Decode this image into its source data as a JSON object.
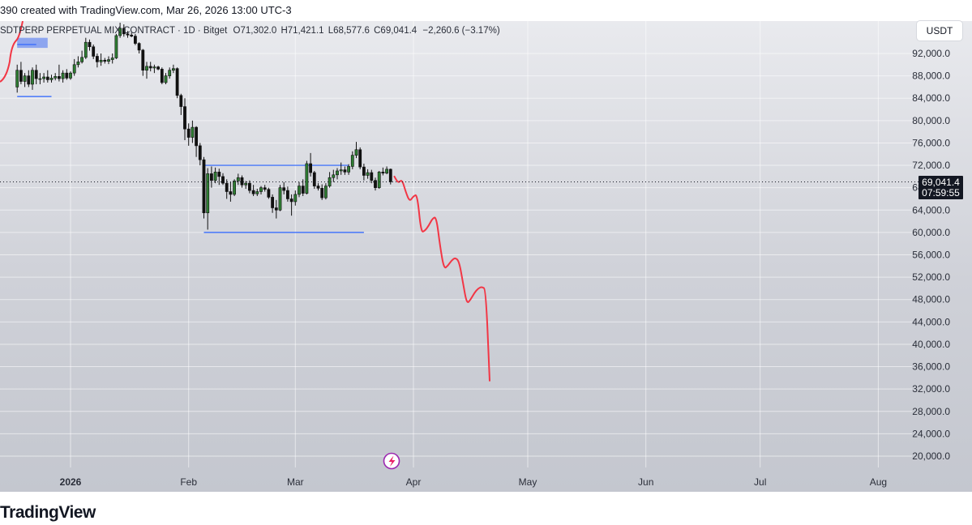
{
  "watermark": "390 created with TradingView.com, Mar 26, 2026 13:00 UTC-3",
  "header": {
    "symbol": "SDTPERP PERPETUAL MIX CONTRACT · 1D · Bitget",
    "open_label": "O",
    "open": "71,302.0",
    "high_label": "H",
    "high": "71,421.1",
    "low_label": "L",
    "low": "68,577.6",
    "close_label": "C",
    "close": "69,041.4",
    "change": "−2,260.6 (−3.17%)"
  },
  "currency_button": "USDT",
  "price_badge": {
    "price": "69,041.4",
    "countdown": "07:59:55"
  },
  "footer_logo": "TradingView",
  "colors": {
    "up": "#2e7d32",
    "down": "#111111",
    "projection": "#f23645",
    "range_line": "#2962ff",
    "background_top": "#e9eaee",
    "background_bottom": "#c4c7cf",
    "badge_bg": "#131722"
  },
  "lightning_icon": "lightning-icon",
  "chart_data": {
    "type": "candlestick",
    "interval": "1D",
    "ylim": [
      16000,
      96000
    ],
    "y_ticks": [
      20000,
      24000,
      28000,
      32000,
      36000,
      40000,
      44000,
      48000,
      52000,
      56000,
      60000,
      64000,
      68000,
      72000,
      76000,
      80000,
      84000,
      88000,
      92000
    ],
    "y_tick_labels": [
      "20,000.0",
      "24,000.0",
      "28,000.0",
      "32,000.0",
      "36,000.0",
      "40,000.0",
      "44,000.0",
      "48,000.0",
      "52,000.0",
      "56,000.0",
      "60,000.0",
      "64,000.0",
      "68,000.0",
      "72,000.0",
      "76,000.0",
      "80,000.0",
      "84,000.0",
      "88,000.0",
      "92,000.0"
    ],
    "x_ticks": [
      {
        "label": "2026",
        "date": "2026-01-01",
        "bold": true
      },
      {
        "label": "Feb",
        "date": "2026-02-01",
        "bold": false
      },
      {
        "label": "Mar",
        "date": "2026-03-01",
        "bold": false
      },
      {
        "label": "Apr",
        "date": "2026-04-01",
        "bold": false
      },
      {
        "label": "May",
        "date": "2026-05-01",
        "bold": false
      },
      {
        "label": "Jun",
        "date": "2026-06-01",
        "bold": false
      },
      {
        "label": "Jul",
        "date": "2026-07-01",
        "bold": false
      },
      {
        "label": "Aug",
        "date": "2026-08-01",
        "bold": false
      }
    ],
    "candles": [
      {
        "date": "2025-12-18",
        "o": 86000,
        "h": 90000,
        "l": 85000,
        "c": 89000
      },
      {
        "date": "2025-12-19",
        "o": 89000,
        "h": 90500,
        "l": 86500,
        "c": 87000
      },
      {
        "date": "2025-12-20",
        "o": 87000,
        "h": 88500,
        "l": 86000,
        "c": 88000
      },
      {
        "date": "2025-12-21",
        "o": 88000,
        "h": 89000,
        "l": 86000,
        "c": 86500
      },
      {
        "date": "2025-12-22",
        "o": 86500,
        "h": 89500,
        "l": 85500,
        "c": 89000
      },
      {
        "date": "2025-12-23",
        "o": 89000,
        "h": 90000,
        "l": 86500,
        "c": 87500
      },
      {
        "date": "2025-12-24",
        "o": 87500,
        "h": 88500,
        "l": 86500,
        "c": 87500
      },
      {
        "date": "2025-12-25",
        "o": 87500,
        "h": 88500,
        "l": 86800,
        "c": 87800
      },
      {
        "date": "2025-12-26",
        "o": 87800,
        "h": 89000,
        "l": 86800,
        "c": 87300
      },
      {
        "date": "2025-12-27",
        "o": 87300,
        "h": 88200,
        "l": 86800,
        "c": 87600
      },
      {
        "date": "2025-12-28",
        "o": 87600,
        "h": 88500,
        "l": 87200,
        "c": 87900
      },
      {
        "date": "2025-12-29",
        "o": 87900,
        "h": 90000,
        "l": 87000,
        "c": 87500
      },
      {
        "date": "2025-12-30",
        "o": 87500,
        "h": 89000,
        "l": 86800,
        "c": 88500
      },
      {
        "date": "2025-12-31",
        "o": 88500,
        "h": 89200,
        "l": 87300,
        "c": 87600
      },
      {
        "date": "2026-01-01",
        "o": 87600,
        "h": 88800,
        "l": 87300,
        "c": 88500
      },
      {
        "date": "2026-01-02",
        "o": 88500,
        "h": 91000,
        "l": 88000,
        "c": 90000
      },
      {
        "date": "2026-01-03",
        "o": 90000,
        "h": 91500,
        "l": 89500,
        "c": 90500
      },
      {
        "date": "2026-01-04",
        "o": 90500,
        "h": 92500,
        "l": 90200,
        "c": 91300
      },
      {
        "date": "2026-01-05",
        "o": 91300,
        "h": 94800,
        "l": 91000,
        "c": 94000
      },
      {
        "date": "2026-01-06",
        "o": 94000,
        "h": 94500,
        "l": 92500,
        "c": 93200
      },
      {
        "date": "2026-01-07",
        "o": 93200,
        "h": 93600,
        "l": 91000,
        "c": 91500
      },
      {
        "date": "2026-01-08",
        "o": 91500,
        "h": 92000,
        "l": 89500,
        "c": 90500
      },
      {
        "date": "2026-01-09",
        "o": 90500,
        "h": 92000,
        "l": 89800,
        "c": 90800
      },
      {
        "date": "2026-01-10",
        "o": 90800,
        "h": 91200,
        "l": 90200,
        "c": 90600
      },
      {
        "date": "2026-01-11",
        "o": 90600,
        "h": 91500,
        "l": 90100,
        "c": 90900
      },
      {
        "date": "2026-01-12",
        "o": 90900,
        "h": 92000,
        "l": 90200,
        "c": 91200
      },
      {
        "date": "2026-01-13",
        "o": 91200,
        "h": 95500,
        "l": 91000,
        "c": 95200
      },
      {
        "date": "2026-01-14",
        "o": 95200,
        "h": 97500,
        "l": 94800,
        "c": 96500
      },
      {
        "date": "2026-01-15",
        "o": 96500,
        "h": 97200,
        "l": 95000,
        "c": 95500
      },
      {
        "date": "2026-01-16",
        "o": 95500,
        "h": 96000,
        "l": 94800,
        "c": 95300
      },
      {
        "date": "2026-01-17",
        "o": 95300,
        "h": 95700,
        "l": 94900,
        "c": 95100
      },
      {
        "date": "2026-01-18",
        "o": 95100,
        "h": 95500,
        "l": 93500,
        "c": 93800
      },
      {
        "date": "2026-01-19",
        "o": 93800,
        "h": 94000,
        "l": 92000,
        "c": 92600
      },
      {
        "date": "2026-01-20",
        "o": 92600,
        "h": 92800,
        "l": 88000,
        "c": 89000
      },
      {
        "date": "2026-01-21",
        "o": 89000,
        "h": 90500,
        "l": 87500,
        "c": 89700
      },
      {
        "date": "2026-01-22",
        "o": 89700,
        "h": 90500,
        "l": 88800,
        "c": 89400
      },
      {
        "date": "2026-01-23",
        "o": 89400,
        "h": 90000,
        "l": 88500,
        "c": 89600
      },
      {
        "date": "2026-01-24",
        "o": 89600,
        "h": 89800,
        "l": 89000,
        "c": 89200
      },
      {
        "date": "2026-01-25",
        "o": 89200,
        "h": 89500,
        "l": 86500,
        "c": 86800
      },
      {
        "date": "2026-01-26",
        "o": 86800,
        "h": 88500,
        "l": 86500,
        "c": 88000
      },
      {
        "date": "2026-01-27",
        "o": 88000,
        "h": 89500,
        "l": 87500,
        "c": 89000
      },
      {
        "date": "2026-01-28",
        "o": 89000,
        "h": 90000,
        "l": 88500,
        "c": 89300
      },
      {
        "date": "2026-01-29",
        "o": 89300,
        "h": 89500,
        "l": 84000,
        "c": 84500
      },
      {
        "date": "2026-01-30",
        "o": 84500,
        "h": 84800,
        "l": 81000,
        "c": 82500
      },
      {
        "date": "2026-01-31",
        "o": 82500,
        "h": 84000,
        "l": 76500,
        "c": 78500
      },
      {
        "date": "2026-02-01",
        "o": 78500,
        "h": 79500,
        "l": 75500,
        "c": 77000
      },
      {
        "date": "2026-02-02",
        "o": 77000,
        "h": 80000,
        "l": 76000,
        "c": 78800
      },
      {
        "date": "2026-02-03",
        "o": 78800,
        "h": 79000,
        "l": 73500,
        "c": 75500
      },
      {
        "date": "2026-02-04",
        "o": 75500,
        "h": 76000,
        "l": 72000,
        "c": 73000
      },
      {
        "date": "2026-02-05",
        "o": 73000,
        "h": 73500,
        "l": 62500,
        "c": 63500
      },
      {
        "date": "2026-02-06",
        "o": 63500,
        "h": 71500,
        "l": 60500,
        "c": 70500
      },
      {
        "date": "2026-02-07",
        "o": 70500,
        "h": 71800,
        "l": 68000,
        "c": 69300
      },
      {
        "date": "2026-02-08",
        "o": 69300,
        "h": 71600,
        "l": 68800,
        "c": 70800
      },
      {
        "date": "2026-02-09",
        "o": 70800,
        "h": 71400,
        "l": 68500,
        "c": 70000
      },
      {
        "date": "2026-02-10",
        "o": 70000,
        "h": 70600,
        "l": 68500,
        "c": 68800
      },
      {
        "date": "2026-02-11",
        "o": 68800,
        "h": 69500,
        "l": 66000,
        "c": 67300
      },
      {
        "date": "2026-02-12",
        "o": 67300,
        "h": 69000,
        "l": 65500,
        "c": 66800
      },
      {
        "date": "2026-02-13",
        "o": 66800,
        "h": 69500,
        "l": 66500,
        "c": 69200
      },
      {
        "date": "2026-02-14",
        "o": 69200,
        "h": 70500,
        "l": 68500,
        "c": 69800
      },
      {
        "date": "2026-02-15",
        "o": 69800,
        "h": 70200,
        "l": 68000,
        "c": 68500
      },
      {
        "date": "2026-02-16",
        "o": 68500,
        "h": 69200,
        "l": 67800,
        "c": 68800
      },
      {
        "date": "2026-02-17",
        "o": 68800,
        "h": 69300,
        "l": 67000,
        "c": 67500
      },
      {
        "date": "2026-02-18",
        "o": 67500,
        "h": 68500,
        "l": 66500,
        "c": 66900
      },
      {
        "date": "2026-02-19",
        "o": 66900,
        "h": 67800,
        "l": 66500,
        "c": 67300
      },
      {
        "date": "2026-02-20",
        "o": 67300,
        "h": 68300,
        "l": 66800,
        "c": 68000
      },
      {
        "date": "2026-02-21",
        "o": 68000,
        "h": 68500,
        "l": 67300,
        "c": 67700
      },
      {
        "date": "2026-02-22",
        "o": 67700,
        "h": 68000,
        "l": 66000,
        "c": 66300
      },
      {
        "date": "2026-02-23",
        "o": 66300,
        "h": 66800,
        "l": 63500,
        "c": 64400
      },
      {
        "date": "2026-02-24",
        "o": 64400,
        "h": 65800,
        "l": 62500,
        "c": 64000
      },
      {
        "date": "2026-02-25",
        "o": 64000,
        "h": 68500,
        "l": 63800,
        "c": 68000
      },
      {
        "date": "2026-02-26",
        "o": 68000,
        "h": 69000,
        "l": 66800,
        "c": 67500
      },
      {
        "date": "2026-02-27",
        "o": 67500,
        "h": 68200,
        "l": 65500,
        "c": 66000
      },
      {
        "date": "2026-02-28",
        "o": 66000,
        "h": 66800,
        "l": 63000,
        "c": 65500
      },
      {
        "date": "2026-03-01",
        "o": 65500,
        "h": 67500,
        "l": 64800,
        "c": 66800
      },
      {
        "date": "2026-03-02",
        "o": 66800,
        "h": 69000,
        "l": 66300,
        "c": 68300
      },
      {
        "date": "2026-03-03",
        "o": 68300,
        "h": 69500,
        "l": 66500,
        "c": 67000
      },
      {
        "date": "2026-03-04",
        "o": 67000,
        "h": 72800,
        "l": 66800,
        "c": 72300
      },
      {
        "date": "2026-03-05",
        "o": 72300,
        "h": 74200,
        "l": 70000,
        "c": 70700
      },
      {
        "date": "2026-03-06",
        "o": 70700,
        "h": 71000,
        "l": 67800,
        "c": 68300
      },
      {
        "date": "2026-03-07",
        "o": 68300,
        "h": 68800,
        "l": 67500,
        "c": 67900
      },
      {
        "date": "2026-03-08",
        "o": 67900,
        "h": 68600,
        "l": 65800,
        "c": 66200
      },
      {
        "date": "2026-03-09",
        "o": 66200,
        "h": 68800,
        "l": 65900,
        "c": 68300
      },
      {
        "date": "2026-03-10",
        "o": 68300,
        "h": 70800,
        "l": 68000,
        "c": 69800
      },
      {
        "date": "2026-03-11",
        "o": 69800,
        "h": 71200,
        "l": 69000,
        "c": 70300
      },
      {
        "date": "2026-03-12",
        "o": 70300,
        "h": 71500,
        "l": 69500,
        "c": 71000
      },
      {
        "date": "2026-03-13",
        "o": 71000,
        "h": 72500,
        "l": 70300,
        "c": 71200
      },
      {
        "date": "2026-03-14",
        "o": 71200,
        "h": 71800,
        "l": 70300,
        "c": 70800
      },
      {
        "date": "2026-03-15",
        "o": 70800,
        "h": 72200,
        "l": 70300,
        "c": 71800
      },
      {
        "date": "2026-03-16",
        "o": 71800,
        "h": 74500,
        "l": 71300,
        "c": 73800
      },
      {
        "date": "2026-03-17",
        "o": 73800,
        "h": 76200,
        "l": 73300,
        "c": 74800
      },
      {
        "date": "2026-03-18",
        "o": 74800,
        "h": 75200,
        "l": 71300,
        "c": 71700
      },
      {
        "date": "2026-03-19",
        "o": 71700,
        "h": 72300,
        "l": 69300,
        "c": 70200
      },
      {
        "date": "2026-03-20",
        "o": 70200,
        "h": 71300,
        "l": 69600,
        "c": 70700
      },
      {
        "date": "2026-03-21",
        "o": 70700,
        "h": 71200,
        "l": 68800,
        "c": 69300
      },
      {
        "date": "2026-03-22",
        "o": 69300,
        "h": 69800,
        "l": 67500,
        "c": 68000
      },
      {
        "date": "2026-03-23",
        "o": 68000,
        "h": 71000,
        "l": 67800,
        "c": 70800
      },
      {
        "date": "2026-03-24",
        "o": 70800,
        "h": 71600,
        "l": 70200,
        "c": 70600
      },
      {
        "date": "2026-03-25",
        "o": 70600,
        "h": 71800,
        "l": 70400,
        "c": 71302
      },
      {
        "date": "2026-03-26",
        "o": 71302,
        "h": 71421.1,
        "l": 68577.6,
        "c": 69041.4
      }
    ],
    "range_lines": [
      {
        "price": 93600,
        "from": "2025-12-18",
        "to": "2025-12-23"
      },
      {
        "price": 84300,
        "from": "2025-12-18",
        "to": "2025-12-27"
      },
      {
        "price": 72000,
        "from": "2026-02-05",
        "to": "2026-03-15"
      },
      {
        "price": 60000,
        "from": "2026-02-05",
        "to": "2026-03-19"
      }
    ],
    "range_box": {
      "from": "2025-12-18",
      "to": "2025-12-26",
      "price_low": 93000,
      "price_high": 94800
    },
    "projection": [
      {
        "date": "2026-03-27",
        "price": 70000
      },
      {
        "date": "2026-03-28",
        "price": 68800
      },
      {
        "date": "2026-03-29",
        "price": 69500
      },
      {
        "date": "2026-03-30",
        "price": 67200
      },
      {
        "date": "2026-03-31",
        "price": 65500
      },
      {
        "date": "2026-04-01",
        "price": 66500
      },
      {
        "date": "2026-04-02",
        "price": 66800
      },
      {
        "date": "2026-04-03",
        "price": 60000
      },
      {
        "date": "2026-04-04",
        "price": 60300
      },
      {
        "date": "2026-04-05",
        "price": 61200
      },
      {
        "date": "2026-04-06",
        "price": 62500
      },
      {
        "date": "2026-04-07",
        "price": 62800
      },
      {
        "date": "2026-04-08",
        "price": 57500
      },
      {
        "date": "2026-04-09",
        "price": 53500
      },
      {
        "date": "2026-04-10",
        "price": 54000
      },
      {
        "date": "2026-04-11",
        "price": 55000
      },
      {
        "date": "2026-04-12",
        "price": 55500
      },
      {
        "date": "2026-04-13",
        "price": 54800
      },
      {
        "date": "2026-04-14",
        "price": 51000
      },
      {
        "date": "2026-04-15",
        "price": 47200
      },
      {
        "date": "2026-04-16",
        "price": 48000
      },
      {
        "date": "2026-04-17",
        "price": 49200
      },
      {
        "date": "2026-04-18",
        "price": 50000
      },
      {
        "date": "2026-04-19",
        "price": 50300
      },
      {
        "date": "2026-04-20",
        "price": 49800
      },
      {
        "date": "2026-04-21",
        "price": 33500
      }
    ],
    "last_price": 69041.4,
    "grid": true
  }
}
